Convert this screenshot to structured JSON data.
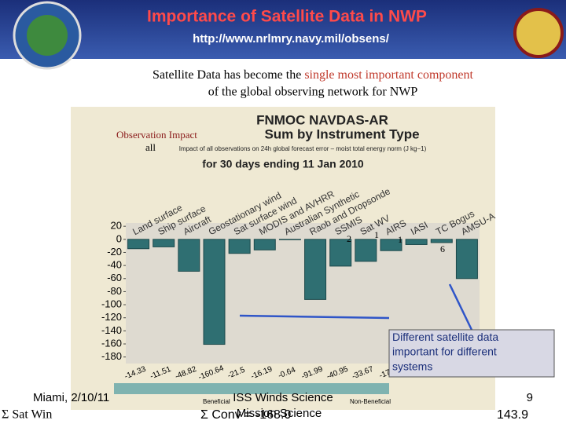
{
  "slide": {
    "title": "Importance of Satellite Data in NWP",
    "url": "http://www.nrlmry.navy.mil/obsens/",
    "statement_1": "Satellite Data has become the",
    "statement_highlight": "single most important component",
    "statement_2": "of the global observing network for NWP",
    "callout": "Different satellite data important for different systems",
    "footer_left": "Miami, 2/10/11",
    "footer_center": "ISS Winds Science",
    "footer_center_2": "Mission Science",
    "footer_right": "9",
    "sum_sat": "Σ Sat Win",
    "sum_conv": "Σ Conv = -168.0",
    "sum_right": "143.9",
    "overlay_label": "Observation Impact",
    "overlay_all": "all",
    "overlay_numbers": [
      "2",
      "1",
      "1",
      "6"
    ]
  },
  "chart_data": {
    "type": "bar",
    "title": "FNMOC  NAVDAS-AR",
    "title_2": "Sum by Instrument Type",
    "subtitle": "Impact of all observations on 24h global forecast error – moist total energy norm (J kg−1)",
    "subtitle_2": "for 30 days ending 11 Jan 2010",
    "categories": [
      "Land surface",
      "Ship surface",
      "Aircraft",
      "Geostationary wind",
      "Sat surface wind",
      "MODIS and AVHRR",
      "Australian Synthetic",
      "Raob and Dropsonde",
      "SSMIS",
      "Sat WV",
      "AIRS",
      "IASI",
      "TC Bogus",
      "AMSU-A"
    ],
    "values": [
      -14.33,
      -11.51,
      -48.82,
      -160.64,
      -21.5,
      -16.19,
      -0.64,
      -91.99,
      -40.95,
      -33.67,
      -17.3,
      -8,
      -5,
      -60
    ],
    "color": "#2f6f72",
    "ylim": [
      -190,
      25
    ],
    "yticks": [
      20,
      0,
      -20,
      -40,
      -60,
      -80,
      -100,
      -120,
      -140,
      -160,
      -180
    ],
    "grid": false,
    "colorbar_labels": [
      "Beneficial",
      "Non-Beneficial"
    ]
  }
}
